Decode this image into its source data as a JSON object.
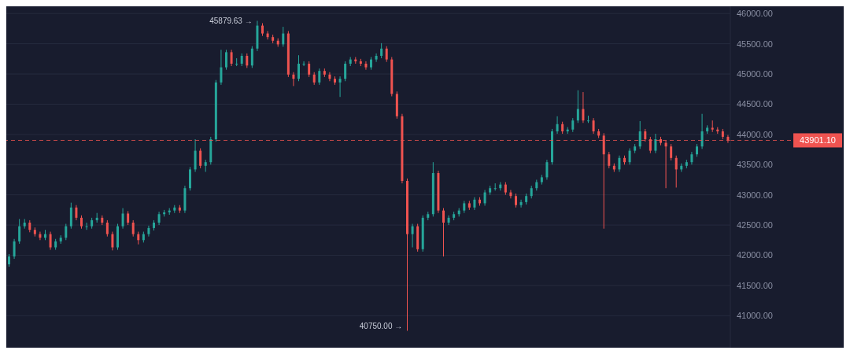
{
  "chart_data": {
    "type": "candlestick",
    "categories": [
      null,
      null,
      null,
      null,
      null,
      null,
      null,
      null,
      null,
      null,
      null,
      null,
      null,
      null,
      null,
      null,
      null,
      null,
      null,
      null,
      null,
      null,
      null,
      null,
      null,
      null,
      null,
      null,
      null,
      null,
      null,
      null,
      null,
      null,
      null,
      null,
      null,
      null,
      null,
      null,
      null,
      null,
      null,
      null,
      null,
      null,
      null,
      null,
      null,
      null,
      null,
      null,
      null,
      null,
      null,
      null,
      null,
      null,
      null,
      null,
      null,
      null,
      null,
      null,
      null,
      null,
      null,
      null,
      null,
      null,
      null,
      null,
      null,
      null,
      null,
      null,
      null,
      null,
      null,
      null,
      null,
      null,
      null,
      null,
      null,
      null,
      null,
      null,
      null,
      null,
      null,
      null,
      null,
      null,
      null,
      null,
      null,
      null,
      null,
      null,
      null,
      null,
      null,
      null,
      null,
      null,
      null,
      null,
      null,
      null,
      null,
      null,
      null,
      null,
      null,
      null,
      null,
      null,
      null,
      null,
      null,
      null,
      null,
      null,
      null,
      null,
      null,
      null,
      null,
      null,
      null,
      null,
      null,
      null,
      null,
      null,
      null,
      null,
      null,
      null
    ],
    "ohlc": [
      [
        41850,
        42020,
        41810,
        41980
      ],
      [
        41980,
        42270,
        41940,
        42230
      ],
      [
        42230,
        42600,
        42190,
        42480
      ],
      [
        42480,
        42600,
        42440,
        42540
      ],
      [
        42540,
        42580,
        42380,
        42420
      ],
      [
        42420,
        42460,
        42310,
        42350
      ],
      [
        42350,
        42390,
        42250,
        42290
      ],
      [
        42290,
        42420,
        42250,
        42350
      ],
      [
        42350,
        42390,
        42090,
        42130
      ],
      [
        42130,
        42270,
        42090,
        42230
      ],
      [
        42230,
        42330,
        42190,
        42290
      ],
      [
        42290,
        42520,
        42250,
        42480
      ],
      [
        42480,
        42870,
        42440,
        42790
      ],
      [
        42790,
        42830,
        42580,
        42620
      ],
      [
        42620,
        42660,
        42440,
        42480
      ],
      [
        42480,
        42540,
        42420,
        42480
      ],
      [
        42480,
        42620,
        42440,
        42580
      ],
      [
        42580,
        42700,
        42540,
        42620
      ],
      [
        42620,
        42660,
        42500,
        42540
      ],
      [
        42540,
        42580,
        42310,
        42350
      ],
      [
        42350,
        42390,
        42080,
        42130
      ],
      [
        42130,
        42520,
        42090,
        42480
      ],
      [
        42480,
        42780,
        42440,
        42690
      ],
      [
        42690,
        42730,
        42500,
        42540
      ],
      [
        42540,
        42580,
        42310,
        42350
      ],
      [
        42350,
        42390,
        42180,
        42250
      ],
      [
        42250,
        42390,
        42210,
        42350
      ],
      [
        42350,
        42490,
        42310,
        42450
      ],
      [
        42450,
        42580,
        42410,
        42540
      ],
      [
        42540,
        42720,
        42500,
        42680
      ],
      [
        42680,
        42750,
        42640,
        42710
      ],
      [
        42710,
        42780,
        42670,
        42740
      ],
      [
        42740,
        42830,
        42700,
        42790
      ],
      [
        42790,
        42830,
        42700,
        42740
      ],
      [
        42740,
        43150,
        42700,
        43110
      ],
      [
        43110,
        43460,
        43070,
        43420
      ],
      [
        43420,
        43920,
        43380,
        43730
      ],
      [
        43730,
        43770,
        43440,
        43480
      ],
      [
        43480,
        43580,
        43380,
        43540
      ],
      [
        43540,
        43960,
        43500,
        43920
      ],
      [
        43920,
        44900,
        43880,
        44860
      ],
      [
        44860,
        45400,
        44820,
        45110
      ],
      [
        45110,
        45400,
        45070,
        45360
      ],
      [
        45360,
        45400,
        45130,
        45170
      ],
      [
        45170,
        45260,
        45130,
        45170
      ],
      [
        45170,
        45340,
        45130,
        45300
      ],
      [
        45300,
        45340,
        45100,
        45140
      ],
      [
        45140,
        45460,
        45100,
        45420
      ],
      [
        45420,
        45879.63,
        45380,
        45800
      ],
      [
        45800,
        45840,
        45630,
        45670
      ],
      [
        45670,
        45710,
        45570,
        45610
      ],
      [
        45610,
        45650,
        45510,
        45550
      ],
      [
        45550,
        45590,
        45450,
        45490
      ],
      [
        45490,
        45780,
        45450,
        45670
      ],
      [
        45670,
        45710,
        44950,
        44990
      ],
      [
        44990,
        45030,
        44800,
        44920
      ],
      [
        44920,
        45310,
        44880,
        45170
      ],
      [
        45170,
        45210,
        45130,
        45170
      ],
      [
        45170,
        45210,
        44950,
        44990
      ],
      [
        44990,
        45030,
        44820,
        44860
      ],
      [
        44860,
        45090,
        44820,
        45050
      ],
      [
        45050,
        45090,
        44950,
        44990
      ],
      [
        44990,
        45030,
        44880,
        44920
      ],
      [
        44920,
        44960,
        44820,
        44860
      ],
      [
        44860,
        44960,
        44620,
        44920
      ],
      [
        44920,
        45210,
        44880,
        45170
      ],
      [
        45170,
        45280,
        45130,
        45240
      ],
      [
        45240,
        45280,
        45170,
        45210
      ],
      [
        45210,
        45250,
        45130,
        45170
      ],
      [
        45170,
        45210,
        45070,
        45110
      ],
      [
        45110,
        45280,
        45070,
        45240
      ],
      [
        45240,
        45340,
        45200,
        45300
      ],
      [
        45300,
        45510,
        45260,
        45420
      ],
      [
        45420,
        45460,
        45200,
        45240
      ],
      [
        45240,
        45280,
        44630,
        44670
      ],
      [
        44670,
        44710,
        44260,
        44300
      ],
      [
        44300,
        44340,
        43190,
        43230
      ],
      [
        43230,
        43270,
        40750,
        42350
      ],
      [
        42350,
        42520,
        42130,
        42480
      ],
      [
        42480,
        42520,
        42060,
        42100
      ],
      [
        42100,
        42660,
        42060,
        42620
      ],
      [
        42620,
        42720,
        42580,
        42680
      ],
      [
        42680,
        43540,
        42640,
        43360
      ],
      [
        43360,
        43400,
        42700,
        42740
      ],
      [
        42740,
        42780,
        41980,
        42540
      ],
      [
        42540,
        42660,
        42500,
        42620
      ],
      [
        42620,
        42720,
        42580,
        42680
      ],
      [
        42680,
        42780,
        42640,
        42740
      ],
      [
        42740,
        42900,
        42700,
        42860
      ],
      [
        42860,
        42900,
        42750,
        42790
      ],
      [
        42790,
        42960,
        42750,
        42920
      ],
      [
        42920,
        42960,
        42820,
        42860
      ],
      [
        42860,
        43080,
        42820,
        43040
      ],
      [
        43040,
        43150,
        43000,
        43110
      ],
      [
        43110,
        43190,
        43070,
        43110
      ],
      [
        43110,
        43210,
        43070,
        43170
      ],
      [
        43170,
        43210,
        43000,
        43040
      ],
      [
        43040,
        43080,
        42940,
        42980
      ],
      [
        42980,
        43020,
        42790,
        42830
      ],
      [
        42830,
        42920,
        42790,
        42880
      ],
      [
        42880,
        43020,
        42840,
        42980
      ],
      [
        42980,
        43150,
        42940,
        43110
      ],
      [
        43110,
        43250,
        43070,
        43210
      ],
      [
        43210,
        43330,
        43170,
        43290
      ],
      [
        43290,
        43580,
        43250,
        43540
      ],
      [
        43540,
        44090,
        43500,
        44050
      ],
      [
        44050,
        44300,
        44010,
        44170
      ],
      [
        44170,
        44210,
        44010,
        44050
      ],
      [
        44050,
        44120,
        44010,
        44080
      ],
      [
        44080,
        44270,
        44040,
        44230
      ],
      [
        44230,
        44730,
        44190,
        44420
      ],
      [
        44420,
        44700,
        44190,
        44230
      ],
      [
        44230,
        44310,
        44190,
        44230
      ],
      [
        44230,
        44270,
        44010,
        44050
      ],
      [
        44050,
        44090,
        43940,
        43980
      ],
      [
        43980,
        44020,
        42440,
        43670
      ],
      [
        43670,
        43710,
        43440,
        43480
      ],
      [
        43480,
        43520,
        43380,
        43420
      ],
      [
        43420,
        43650,
        43380,
        43610
      ],
      [
        43610,
        43650,
        43500,
        43540
      ],
      [
        43540,
        43770,
        43500,
        43730
      ],
      [
        43730,
        43840,
        43690,
        43800
      ],
      [
        43800,
        44220,
        43760,
        44050
      ],
      [
        44050,
        44090,
        43880,
        43920
      ],
      [
        43920,
        43960,
        43690,
        43730
      ],
      [
        43730,
        44010,
        43690,
        43920
      ],
      [
        43920,
        43960,
        43820,
        43860
      ],
      [
        43860,
        43900,
        43110,
        43800
      ],
      [
        43800,
        43840,
        43570,
        43610
      ],
      [
        43610,
        43650,
        43120,
        43420
      ],
      [
        43420,
        43520,
        43380,
        43480
      ],
      [
        43480,
        43580,
        43440,
        43540
      ],
      [
        43540,
        43710,
        43500,
        43670
      ],
      [
        43670,
        43840,
        43630,
        43800
      ],
      [
        43800,
        44340,
        43760,
        44050
      ],
      [
        44050,
        44150,
        44010,
        44110
      ],
      [
        44110,
        44230,
        44040,
        44080
      ],
      [
        44080,
        44120,
        44010,
        44050
      ],
      [
        44050,
        44090,
        43920,
        43960
      ],
      [
        43960,
        43990,
        43860,
        43901.1
      ]
    ],
    "colors": [
      "#26a69a",
      "#26a69a",
      "#26a69a",
      "#26a69a",
      "#ef5350",
      "#ef5350",
      "#ef5350",
      "#26a69a",
      "#ef5350",
      "#26a69a",
      "#26a69a",
      "#26a69a",
      "#26a69a",
      "#ef5350",
      "#ef5350",
      "#26a69a",
      "#26a69a",
      "#26a69a",
      "#ef5350",
      "#ef5350",
      "#ef5350",
      "#26a69a",
      "#26a69a",
      "#ef5350",
      "#ef5350",
      "#ef5350",
      "#26a69a",
      "#26a69a",
      "#26a69a",
      "#26a69a",
      "#26a69a",
      "#26a69a",
      "#26a69a",
      "#ef5350",
      "#26a69a",
      "#26a69a",
      "#26a69a",
      "#ef5350",
      "#26a69a",
      "#26a69a",
      "#26a69a",
      "#26a69a",
      "#26a69a",
      "#ef5350",
      "#26a69a",
      "#26a69a",
      "#ef5350",
      "#26a69a",
      "#26a69a",
      "#ef5350",
      "#ef5350",
      "#ef5350",
      "#ef5350",
      "#26a69a",
      "#ef5350",
      "#ef5350",
      "#26a69a",
      "#26a69a",
      "#ef5350",
      "#ef5350",
      "#26a69a",
      "#ef5350",
      "#ef5350",
      "#ef5350",
      "#26a69a",
      "#26a69a",
      "#26a69a",
      "#ef5350",
      "#ef5350",
      "#ef5350",
      "#26a69a",
      "#26a69a",
      "#26a69a",
      "#ef5350",
      "#ef5350",
      "#ef5350",
      "#ef5350",
      "#ef5350",
      "#26a69a",
      "#ef5350",
      "#26a69a",
      "#26a69a",
      "#26a69a",
      "#ef5350",
      "#ef5350",
      "#26a69a",
      "#26a69a",
      "#26a69a",
      "#26a69a",
      "#ef5350",
      "#26a69a",
      "#ef5350",
      "#26a69a",
      "#26a69a",
      "#26a69a",
      "#26a69a",
      "#ef5350",
      "#ef5350",
      "#ef5350",
      "#26a69a",
      "#26a69a",
      "#26a69a",
      "#26a69a",
      "#26a69a",
      "#26a69a",
      "#26a69a",
      "#26a69a",
      "#ef5350",
      "#26a69a",
      "#26a69a",
      "#26a69a",
      "#ef5350",
      "#26a69a",
      "#ef5350",
      "#ef5350",
      "#ef5350",
      "#ef5350",
      "#ef5350",
      "#26a69a",
      "#ef5350",
      "#26a69a",
      "#26a69a",
      "#26a69a",
      "#ef5350",
      "#ef5350",
      "#26a69a",
      "#ef5350",
      "#ef5350",
      "#ef5350",
      "#ef5350",
      "#26a69a",
      "#26a69a",
      "#26a69a",
      "#26a69a",
      "#26a69a",
      "#26a69a",
      "#ef5350",
      "#ef5350",
      "#ef5350",
      "#ef5350"
    ],
    "ylim": [
      40470,
      46120
    ],
    "yticks": [
      {
        "value": 41000,
        "label": "41000.00"
      },
      {
        "value": 41500,
        "label": "41500.00"
      },
      {
        "value": 42000,
        "label": "42000.00"
      },
      {
        "value": 42500,
        "label": "42500.00"
      },
      {
        "value": 43000,
        "label": "43000.00"
      },
      {
        "value": 43500,
        "label": "43500.00"
      },
      {
        "value": 44000,
        "label": "44000.00"
      },
      {
        "value": 44500,
        "label": "44500.00"
      },
      {
        "value": 45000,
        "label": "45000.00"
      },
      {
        "value": 45500,
        "label": "45500.00"
      },
      {
        "value": 46000,
        "label": "46000.00"
      }
    ],
    "tick_labels": "y",
    "grid": "y",
    "ref_lines": [
      {
        "axis": "y",
        "value": 43901.1,
        "label": "43901.10",
        "color": "#ef5350",
        "line_style": "dashed"
      }
    ],
    "annotations": [
      "45879.63 →",
      "40750.00 →"
    ]
  }
}
